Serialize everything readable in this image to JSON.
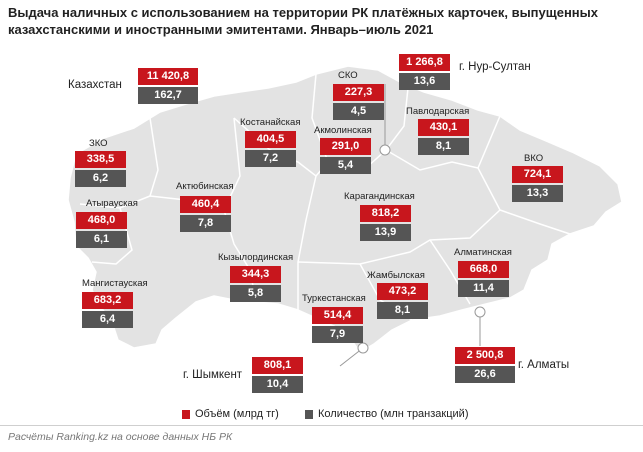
{
  "title": "Выдача наличных с использованием на территории РК платёжных карточек, выпущенных казахстанскими и иностранными эмитентами. Январь–июль 2021",
  "colors": {
    "volume": "#c8161d",
    "count": "#555555",
    "map_fill": "#e3e3e3",
    "map_border": "#ffffff"
  },
  "regions": {
    "kazakhstan": {
      "name": "Казахстан",
      "volume": "11 420,8",
      "count": "162,7"
    },
    "nur_sultan": {
      "name": "г. Нур-Султан",
      "volume": "1 266,8",
      "count": "13,6"
    },
    "sko": {
      "name": "СКО",
      "volume": "227,3",
      "count": "4,5"
    },
    "kostanay": {
      "name": "Костанайская",
      "volume": "404,5",
      "count": "7,2"
    },
    "akmola": {
      "name": "Акмолинская",
      "volume": "291,0",
      "count": "5,4"
    },
    "pavlodar": {
      "name": "Павлодарская",
      "volume": "430,1",
      "count": "8,1"
    },
    "zko": {
      "name": "ЗКО",
      "volume": "338,5",
      "count": "6,2"
    },
    "vko": {
      "name": "ВКО",
      "volume": "724,1",
      "count": "13,3"
    },
    "aktobe": {
      "name": "Актюбинская",
      "volume": "460,4",
      "count": "7,8"
    },
    "atyrau": {
      "name": "Атырауская",
      "volume": "468,0",
      "count": "6,1"
    },
    "karaganda": {
      "name": "Карагандинская",
      "volume": "818,2",
      "count": "13,9"
    },
    "kyzylorda": {
      "name": "Кызылординская",
      "volume": "344,3",
      "count": "5,8"
    },
    "almaty_obl": {
      "name": "Алматинская",
      "volume": "668,0",
      "count": "11,4"
    },
    "zhambyl": {
      "name": "Жамбылская",
      "volume": "473,2",
      "count": "8,1"
    },
    "mangystau": {
      "name": "Мангистауская",
      "volume": "683,2",
      "count": "6,4"
    },
    "turkestan": {
      "name": "Туркестанская",
      "volume": "514,4",
      "count": "7,9"
    },
    "shymkent": {
      "name": "г. Шымкент",
      "volume": "808,1",
      "count": "10,4"
    },
    "almaty": {
      "name": "г. Алматы",
      "volume": "2 500,8",
      "count": "26,6"
    }
  },
  "legend": {
    "volume_label": "Объём (млрд тг)",
    "count_label": "Количество (млн транзакций)"
  },
  "footnote": "Расчёты Ranking.kz на основе данных НБ РК"
}
